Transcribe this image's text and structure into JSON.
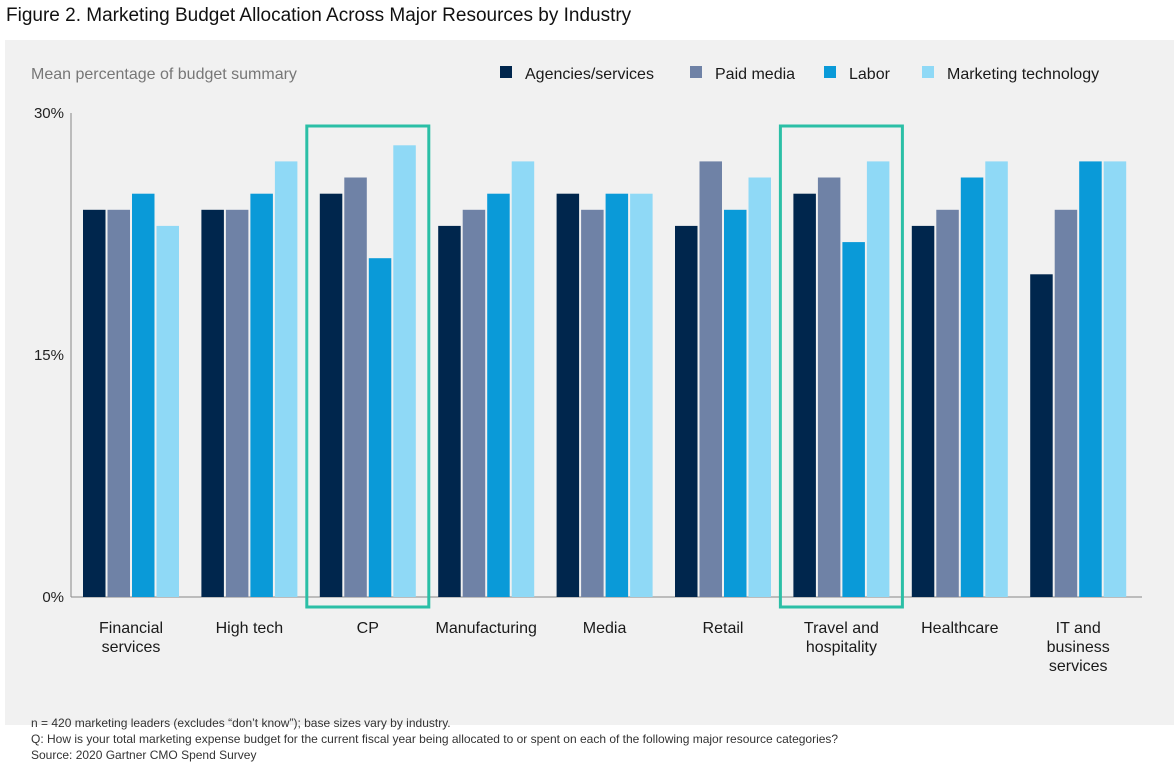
{
  "figure_title": "Figure 2. Marketing Budget Allocation Across Major Resources by Industry",
  "chart_data": {
    "type": "bar",
    "subtitle": "Mean percentage of budget summary",
    "categories": [
      [
        "Financial",
        "services"
      ],
      [
        "High tech"
      ],
      [
        "CP"
      ],
      [
        "Manufacturing"
      ],
      [
        "Media"
      ],
      [
        "Retail"
      ],
      [
        "Travel and",
        "hospitality"
      ],
      [
        "Healthcare"
      ],
      [
        "IT and",
        "business",
        "services"
      ]
    ],
    "series": [
      {
        "name": "Agencies/services",
        "color": "#00264d",
        "values": [
          24,
          24,
          25,
          23,
          25,
          23,
          25,
          23,
          20
        ]
      },
      {
        "name": "Paid media",
        "color": "#6f82a6",
        "values": [
          24,
          24,
          26,
          24,
          24,
          27,
          26,
          24,
          24
        ]
      },
      {
        "name": "Labor",
        "color": "#0a9ad8",
        "values": [
          25,
          25,
          21,
          25,
          25,
          24,
          22,
          26,
          27
        ]
      },
      {
        "name": "Marketing technology",
        "color": "#8fd9f6",
        "values": [
          23,
          27,
          28,
          27,
          25,
          26,
          27,
          27,
          27
        ]
      }
    ],
    "y_ticks": [
      {
        "value": 0,
        "label": "0%"
      },
      {
        "value": 15,
        "label": "15%"
      },
      {
        "value": 30,
        "label": "30%"
      }
    ],
    "ylim": [
      0,
      30
    ],
    "highlighted_categories": [
      2,
      6
    ],
    "highlight_color": "#2bbfa6",
    "legend_position": "top-right",
    "grid": false
  },
  "footnotes": [
    "n = 420 marketing leaders (excludes “don’t know”); base sizes vary by industry.",
    "Q: How is your total marketing expense budget for the current fiscal year being allocated to or spent on each of the following major resource categories?",
    "Source: 2020 Gartner CMO Spend Survey"
  ]
}
